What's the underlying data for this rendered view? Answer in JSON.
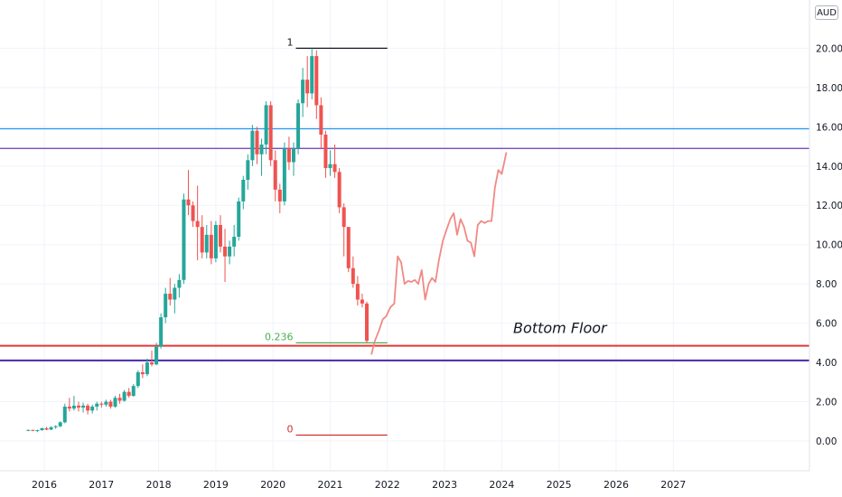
{
  "currency": "AUD",
  "colors": {
    "up": "#26a69a",
    "down": "#ef5350",
    "projection": "#f08a84",
    "fib_one": "#131722",
    "fib_0236": "#4caf50",
    "fib_zero": "#d32f2f",
    "level_light_blue": "#2196f3",
    "level_purple_upper": "#673ab7",
    "level_red": "#e53935",
    "level_purple_lower": "#4a2aa8",
    "grid": "#f0f3fa"
  },
  "chart_data": {
    "type": "candlestick",
    "ylim": [
      -1.5,
      21.8
    ],
    "xlim": [
      2015.0,
      2027.75
    ],
    "grid": true,
    "x_ticks": [
      "2016",
      "2017",
      "2018",
      "2019",
      "2020",
      "2021",
      "2022",
      "2023",
      "2024",
      "2025",
      "2026",
      "2027"
    ],
    "y_ticks": [
      "0.00",
      "2.00",
      "4.00",
      "6.00",
      "8.00",
      "10.00",
      "12.00",
      "14.00",
      "16.00",
      "18.00",
      "20.00"
    ],
    "horizontal_levels": [
      {
        "value": 15.9,
        "color_key": "level_light_blue"
      },
      {
        "value": 14.9,
        "color_key": "level_purple_upper"
      },
      {
        "value": 4.85,
        "color_key": "level_red"
      },
      {
        "value": 4.1,
        "color_key": "level_purple_lower"
      }
    ],
    "fibonacci": {
      "x_start": 2020.4,
      "x_end": 2022.0,
      "levels": [
        {
          "label": "1",
          "value": 20.0,
          "color_key": "fib_one"
        },
        {
          "label": "0.236",
          "value": 5.0,
          "color_key": "fib_0236"
        },
        {
          "label": "0",
          "value": 0.3,
          "color_key": "fib_zero"
        }
      ]
    },
    "annotation": {
      "text": "Bottom Floor",
      "x": 2024.2,
      "y": 5.5
    },
    "candles": [
      [
        2015.72,
        0.55,
        0.58,
        0.5,
        0.56
      ],
      [
        2015.8,
        0.56,
        0.58,
        0.5,
        0.52
      ],
      [
        2015.88,
        0.52,
        0.57,
        0.45,
        0.55
      ],
      [
        2015.96,
        0.55,
        0.68,
        0.52,
        0.65
      ],
      [
        2016.04,
        0.65,
        0.72,
        0.55,
        0.58
      ],
      [
        2016.12,
        0.58,
        0.75,
        0.55,
        0.7
      ],
      [
        2016.2,
        0.7,
        0.8,
        0.62,
        0.75
      ],
      [
        2016.28,
        0.75,
        1.0,
        0.7,
        0.95
      ],
      [
        2016.36,
        0.95,
        1.9,
        0.9,
        1.75
      ],
      [
        2016.44,
        1.75,
        2.2,
        1.5,
        1.65
      ],
      [
        2016.52,
        1.65,
        2.3,
        1.55,
        1.8
      ],
      [
        2016.6,
        1.8,
        2.0,
        1.5,
        1.7
      ],
      [
        2016.68,
        1.7,
        1.95,
        1.45,
        1.8
      ],
      [
        2016.76,
        1.8,
        1.9,
        1.35,
        1.55
      ],
      [
        2016.84,
        1.55,
        1.85,
        1.4,
        1.75
      ],
      [
        2016.92,
        1.75,
        2.0,
        1.55,
        1.9
      ],
      [
        2017.0,
        1.9,
        2.0,
        1.7,
        1.85
      ],
      [
        2017.08,
        1.85,
        2.1,
        1.75,
        2.0
      ],
      [
        2017.16,
        2.0,
        2.1,
        1.65,
        1.75
      ],
      [
        2017.24,
        1.75,
        2.3,
        1.7,
        2.2
      ],
      [
        2017.32,
        2.2,
        2.4,
        1.9,
        2.05
      ],
      [
        2017.4,
        2.05,
        2.6,
        2.0,
        2.5
      ],
      [
        2017.48,
        2.5,
        2.7,
        2.2,
        2.3
      ],
      [
        2017.56,
        2.3,
        2.9,
        2.25,
        2.8
      ],
      [
        2017.64,
        2.8,
        3.6,
        2.7,
        3.5
      ],
      [
        2017.72,
        3.5,
        3.9,
        3.2,
        3.4
      ],
      [
        2017.8,
        3.4,
        4.2,
        3.3,
        4.0
      ],
      [
        2017.88,
        4.0,
        4.6,
        3.8,
        3.9
      ],
      [
        2017.96,
        3.9,
        5.0,
        3.85,
        4.8
      ],
      [
        2018.04,
        4.8,
        6.5,
        4.7,
        6.3
      ],
      [
        2018.12,
        6.3,
        7.8,
        6.0,
        7.5
      ],
      [
        2018.2,
        7.5,
        8.3,
        6.9,
        7.2
      ],
      [
        2018.28,
        7.2,
        8.0,
        6.5,
        7.8
      ],
      [
        2018.36,
        7.8,
        8.5,
        7.3,
        8.2
      ],
      [
        2018.44,
        8.2,
        12.6,
        8.0,
        12.3
      ],
      [
        2018.52,
        12.3,
        13.8,
        11.5,
        12.0
      ],
      [
        2018.6,
        12.0,
        12.2,
        10.9,
        11.2
      ],
      [
        2018.68,
        11.2,
        13.0,
        9.2,
        10.9
      ],
      [
        2018.76,
        10.9,
        11.5,
        9.3,
        9.6
      ],
      [
        2018.84,
        9.6,
        11.0,
        9.3,
        10.5
      ],
      [
        2018.92,
        10.5,
        11.2,
        9.0,
        9.3
      ],
      [
        2019.0,
        9.3,
        11.2,
        9.1,
        11.0
      ],
      [
        2019.08,
        11.0,
        11.5,
        9.6,
        9.9
      ],
      [
        2019.16,
        9.9,
        10.8,
        8.1,
        9.4
      ],
      [
        2019.24,
        9.4,
        10.2,
        9.0,
        9.9
      ],
      [
        2019.32,
        9.9,
        11.0,
        9.4,
        10.4
      ],
      [
        2019.4,
        10.4,
        12.4,
        10.2,
        12.2
      ],
      [
        2019.48,
        12.2,
        13.5,
        11.8,
        13.3
      ],
      [
        2019.56,
        13.3,
        14.6,
        12.8,
        14.3
      ],
      [
        2019.64,
        14.3,
        16.1,
        14.0,
        15.8
      ],
      [
        2019.72,
        15.8,
        16.0,
        14.1,
        14.6
      ],
      [
        2019.8,
        14.6,
        15.4,
        13.5,
        15.1
      ],
      [
        2019.88,
        15.1,
        17.3,
        14.6,
        17.1
      ],
      [
        2019.96,
        17.1,
        17.3,
        14.0,
        14.3
      ],
      [
        2020.04,
        14.3,
        14.8,
        12.2,
        12.8
      ],
      [
        2020.12,
        12.8,
        13.1,
        11.6,
        12.2
      ],
      [
        2020.2,
        12.2,
        15.2,
        12.0,
        14.9
      ],
      [
        2020.28,
        14.9,
        15.5,
        13.8,
        14.2
      ],
      [
        2020.36,
        14.2,
        15.2,
        13.5,
        14.9
      ],
      [
        2020.44,
        14.9,
        17.4,
        14.6,
        17.2
      ],
      [
        2020.52,
        17.2,
        19.0,
        16.5,
        18.4
      ],
      [
        2020.6,
        18.4,
        19.6,
        17.0,
        17.7
      ],
      [
        2020.68,
        17.7,
        20.0,
        17.4,
        19.6
      ],
      [
        2020.76,
        19.6,
        19.9,
        16.4,
        17.1
      ],
      [
        2020.84,
        17.1,
        17.5,
        14.9,
        15.6
      ],
      [
        2020.92,
        15.6,
        15.8,
        13.4,
        13.9
      ],
      [
        2021.0,
        13.9,
        14.8,
        13.5,
        14.1
      ],
      [
        2021.08,
        14.1,
        15.1,
        13.4,
        13.7
      ],
      [
        2021.16,
        13.7,
        13.9,
        11.6,
        11.9
      ],
      [
        2021.24,
        11.9,
        12.1,
        9.4,
        10.9
      ],
      [
        2021.32,
        10.9,
        10.9,
        8.6,
        8.8
      ],
      [
        2021.4,
        8.8,
        9.4,
        7.8,
        8.0
      ],
      [
        2021.48,
        8.0,
        8.4,
        6.9,
        7.2
      ],
      [
        2021.56,
        7.2,
        7.5,
        6.8,
        7.0
      ],
      [
        2021.64,
        7.0,
        7.1,
        5.0,
        5.1
      ]
    ],
    "projection": [
      [
        2021.72,
        4.4
      ],
      [
        2021.78,
        5.1
      ],
      [
        2021.85,
        5.6
      ],
      [
        2021.92,
        6.2
      ],
      [
        2021.98,
        6.35
      ],
      [
        2022.05,
        6.8
      ],
      [
        2022.12,
        7.0
      ],
      [
        2022.18,
        9.4
      ],
      [
        2022.24,
        9.1
      ],
      [
        2022.3,
        8.0
      ],
      [
        2022.36,
        8.15
      ],
      [
        2022.42,
        8.1
      ],
      [
        2022.48,
        8.2
      ],
      [
        2022.54,
        8.0
      ],
      [
        2022.6,
        8.7
      ],
      [
        2022.66,
        7.2
      ],
      [
        2022.72,
        8.0
      ],
      [
        2022.78,
        8.3
      ],
      [
        2022.84,
        8.1
      ],
      [
        2022.9,
        9.2
      ],
      [
        2022.97,
        10.2
      ],
      [
        2023.04,
        10.8
      ],
      [
        2023.1,
        11.3
      ],
      [
        2023.16,
        11.6
      ],
      [
        2023.22,
        10.5
      ],
      [
        2023.28,
        11.3
      ],
      [
        2023.34,
        10.9
      ],
      [
        2023.4,
        10.2
      ],
      [
        2023.46,
        10.1
      ],
      [
        2023.52,
        9.4
      ],
      [
        2023.58,
        11.0
      ],
      [
        2023.64,
        11.2
      ],
      [
        2023.7,
        11.1
      ],
      [
        2023.76,
        11.2
      ],
      [
        2023.82,
        11.2
      ],
      [
        2023.88,
        12.9
      ],
      [
        2023.94,
        13.8
      ],
      [
        2024.0,
        13.6
      ],
      [
        2024.08,
        14.7
      ]
    ]
  }
}
